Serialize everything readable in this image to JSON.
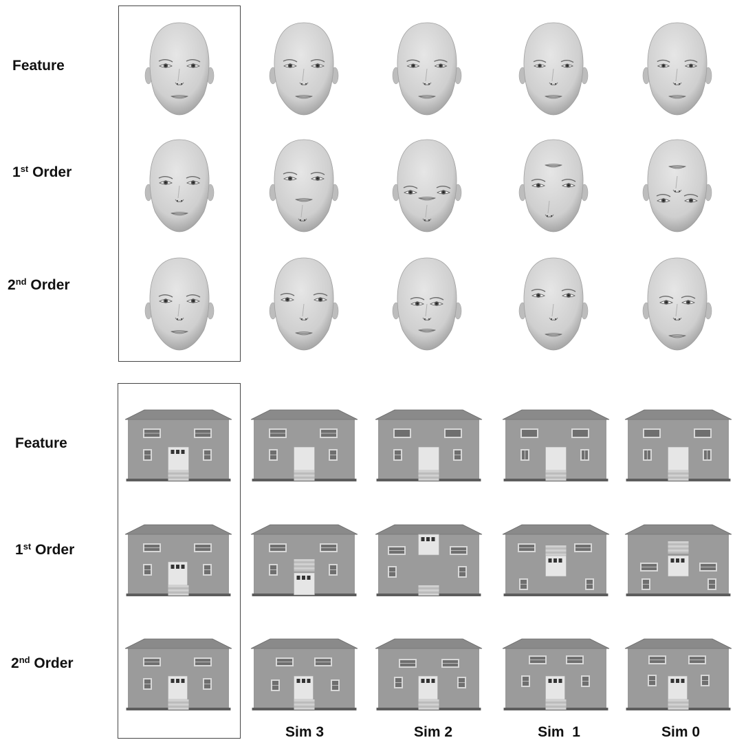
{
  "faces_panel": {
    "rows": [
      {
        "ordinal": "",
        "suffix": "",
        "label": "Feature"
      },
      {
        "ordinal": "1",
        "suffix": "st",
        "label": " Order"
      },
      {
        "ordinal": "2",
        "suffix": "nd",
        "label": " Order"
      }
    ]
  },
  "houses_panel": {
    "rows": [
      {
        "ordinal": "",
        "suffix": "",
        "label": "Feature"
      },
      {
        "ordinal": "1",
        "suffix": "st",
        "label": " Order"
      },
      {
        "ordinal": "2",
        "suffix": "nd",
        "label": " Order"
      }
    ]
  },
  "columns": [
    "Sim 3",
    "Sim 2",
    "Sim  1",
    "Sim 0"
  ],
  "colors": {
    "face_skin": "#cfcfcf",
    "face_shade": "#9a9a9a",
    "house_wall": "#9b9b9b",
    "house_roof": "#8a8a8a",
    "window": "#6f6f6f",
    "door": "#e6e6e6",
    "frame": "#444444"
  }
}
